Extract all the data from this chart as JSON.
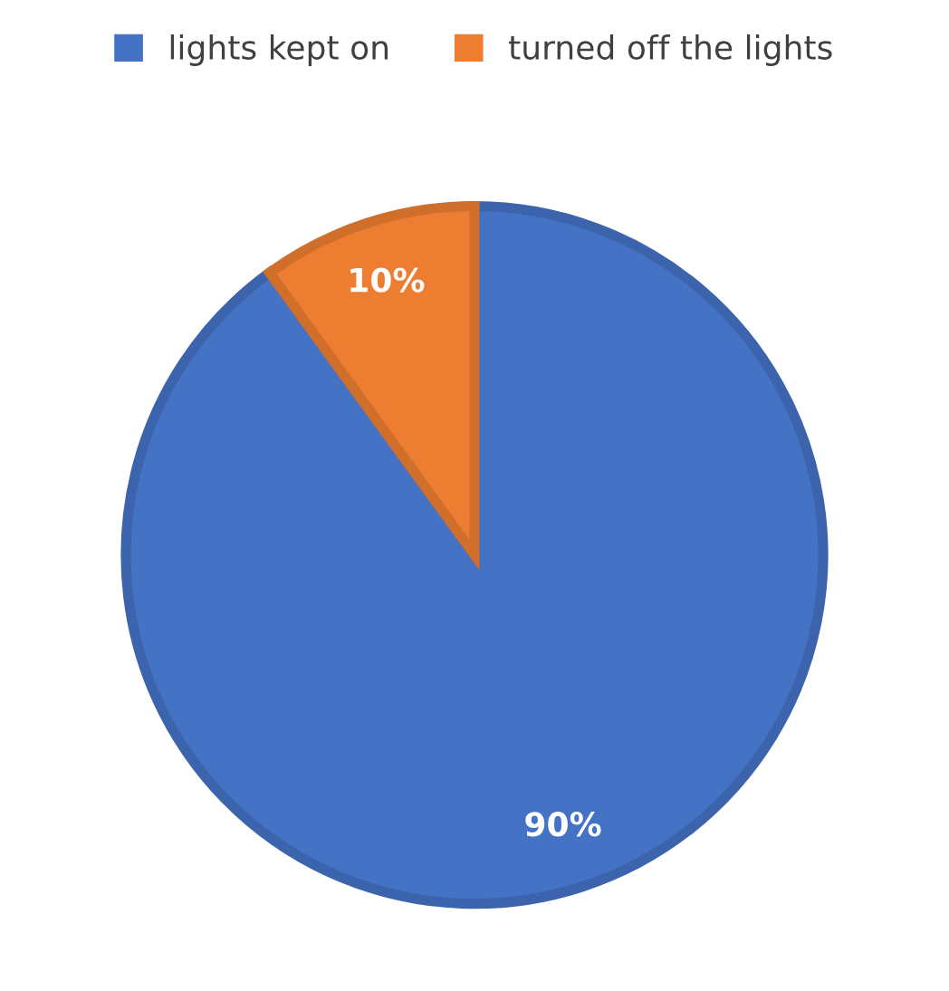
{
  "chart_data": {
    "type": "pie",
    "categories": [
      "lights kept on",
      "turned off the lights"
    ],
    "values": [
      90,
      10
    ],
    "colors": [
      "#4472c4",
      "#ed7d31"
    ],
    "value_labels": [
      "90%",
      "10%"
    ],
    "legend": "top"
  }
}
